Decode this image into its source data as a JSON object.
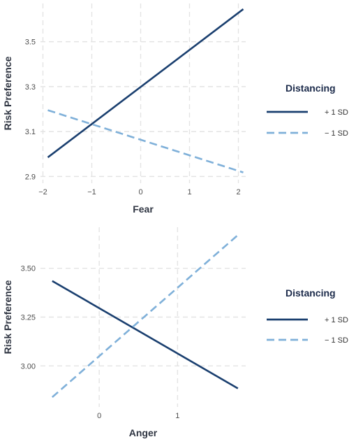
{
  "chart_data": [
    {
      "type": "line",
      "xlabel": "Fear",
      "ylabel": "Risk Preference",
      "xlim": [
        -2.05,
        2.15
      ],
      "ylim": [
        2.87,
        3.67
      ],
      "x_ticks": [
        -2,
        -1,
        0,
        1,
        2
      ],
      "x_tick_labels": [
        "−2",
        "−1",
        "0",
        "1",
        "2"
      ],
      "y_ticks": [
        2.9,
        3.1,
        3.3,
        3.5
      ],
      "y_tick_labels": [
        "2.9",
        "3.1",
        "3.3",
        "3.5"
      ],
      "grid": true,
      "legend": {
        "title": "Distancing",
        "placement": "right",
        "entries": [
          "+ 1 SD",
          "− 1 SD"
        ]
      },
      "series": [
        {
          "name": "+ 1 SD",
          "color": "#1a3f6f",
          "dash": "solid",
          "x": [
            -1.9,
            2.1
          ],
          "y": [
            2.985,
            3.645
          ]
        },
        {
          "name": "− 1 SD",
          "color": "#7fb0d9",
          "dash": "dashed",
          "x": [
            -1.9,
            2.1
          ],
          "y": [
            3.195,
            2.918
          ]
        }
      ]
    },
    {
      "type": "line",
      "xlabel": "Anger",
      "ylabel": "Risk Preference",
      "xlim": [
        -0.75,
        1.87
      ],
      "ylim": [
        2.79,
        3.71
      ],
      "x_ticks": [
        0,
        1
      ],
      "x_tick_labels": [
        "0",
        "1"
      ],
      "y_ticks": [
        3.0,
        3.25,
        3.5
      ],
      "y_tick_labels": [
        "3.00",
        "3.25",
        "3.50"
      ],
      "grid": true,
      "legend": {
        "title": "Distancing",
        "placement": "right",
        "entries": [
          "+ 1 SD",
          "− 1 SD"
        ]
      },
      "series": [
        {
          "name": "+ 1 SD",
          "color": "#1a3f6f",
          "dash": "solid",
          "x": [
            -0.6,
            1.77
          ],
          "y": [
            3.435,
            2.885
          ]
        },
        {
          "name": "− 1 SD",
          "color": "#7fb0d9",
          "dash": "dashed",
          "x": [
            -0.6,
            1.77
          ],
          "y": [
            2.84,
            3.67
          ]
        }
      ]
    }
  ]
}
